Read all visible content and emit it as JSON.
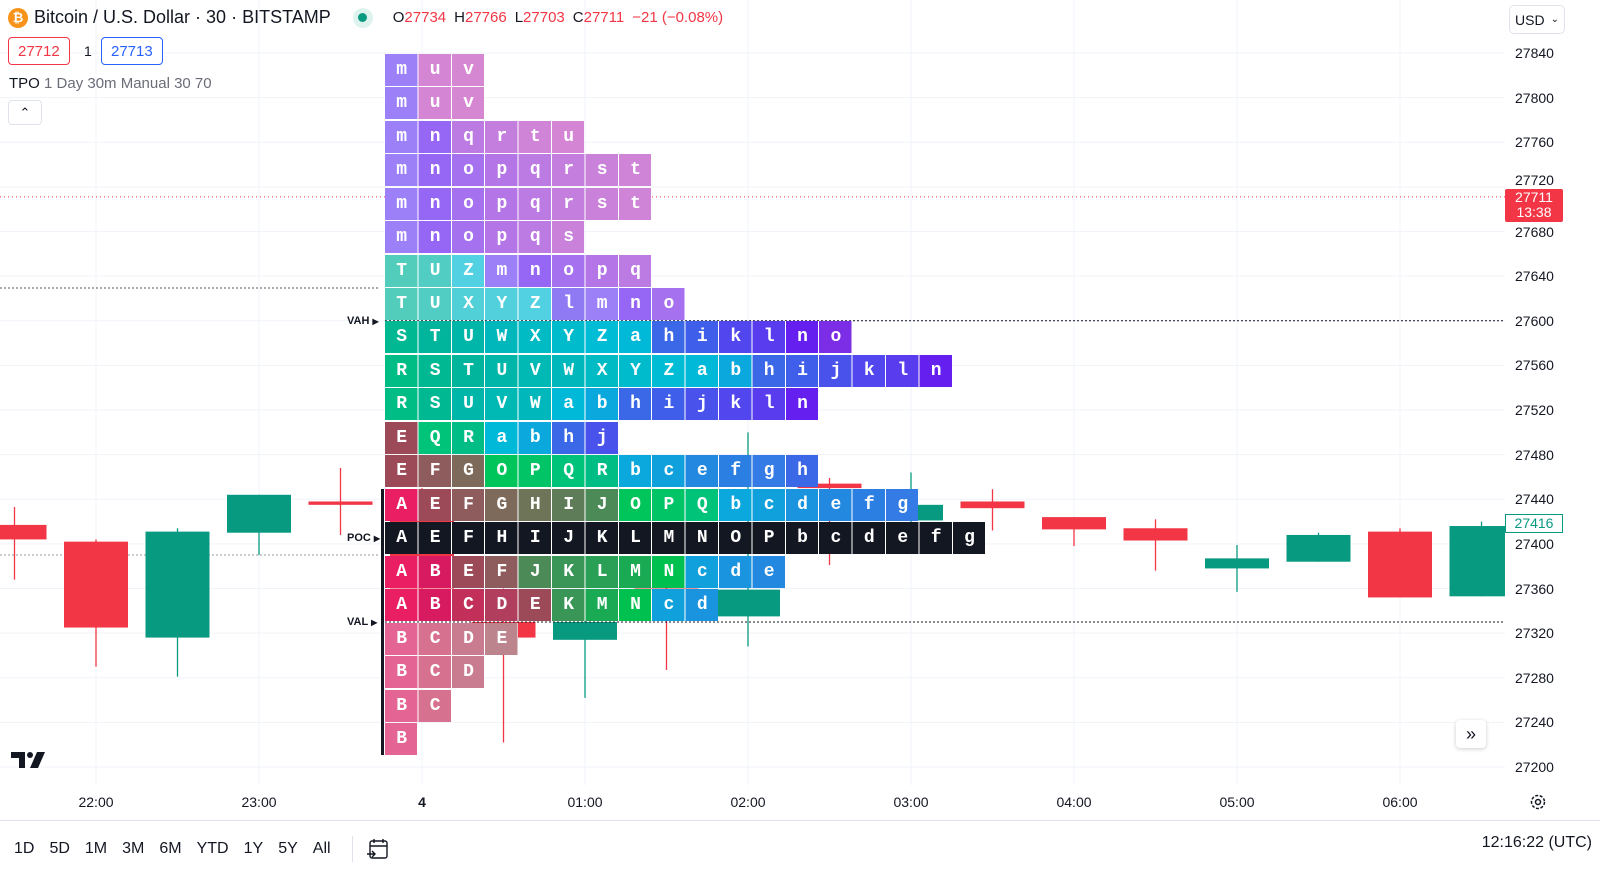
{
  "header": {
    "symbol_icon": "bitcoin-icon",
    "title": "Bitcoin / U.S. Dollar · 30 · BITSTAMP",
    "status": "market-open-dot",
    "ohlc": {
      "o_label": "O",
      "o": "27734",
      "h_label": "H",
      "h": "27766",
      "l_label": "L",
      "l": "27703",
      "c_label": "C",
      "c": "27711",
      "change": "−21 (−0.08%)"
    }
  },
  "bid": "27712",
  "spread": "1",
  "ask": "27713",
  "indicator": {
    "name": "TPO",
    "params": "1 Day 30m Manual 30 70"
  },
  "currency": "USD",
  "colors": {
    "up": "#089981",
    "down": "#f23645",
    "poc_bg": "#131722"
  },
  "chart_data": {
    "type": "candlestick+tpo",
    "price_axis": {
      "ticks": [
        "27840",
        "27800",
        "27760",
        "27720",
        "27680",
        "27640",
        "27600",
        "27560",
        "27520",
        "27480",
        "27440",
        "27400",
        "27360",
        "27320",
        "27280",
        "27240",
        "27200"
      ],
      "range": [
        27200,
        27840
      ]
    },
    "time_axis": {
      "ticks": [
        "22:00",
        "23:00",
        "4",
        "01:00",
        "02:00",
        "03:00",
        "04:00",
        "05:00",
        "06:00"
      ]
    },
    "current_price": {
      "value": "27711",
      "countdown": "13:38"
    },
    "last_label": "27416",
    "candles": [
      {
        "t": "21:30",
        "o": 27417,
        "h": 27433,
        "l": 27368,
        "c": 27404
      },
      {
        "t": "22:00",
        "o": 27402,
        "h": 27404,
        "l": 27290,
        "c": 27325
      },
      {
        "t": "22:30",
        "o": 27316,
        "h": 27414,
        "l": 27281,
        "c": 27411
      },
      {
        "t": "23:00",
        "o": 27410,
        "h": 27444,
        "l": 27390,
        "c": 27444
      },
      {
        "t": "23:30",
        "o": 27438,
        "h": 27468,
        "l": 27408,
        "c": 27435
      },
      {
        "t": "00:00",
        "o": 27435,
        "h": 27450,
        "l": 27340,
        "c": 27360
      },
      {
        "t": "00:30",
        "o": 27330,
        "h": 27360,
        "l": 27222,
        "c": 27316
      },
      {
        "t": "01:00",
        "o": 27314,
        "h": 27345,
        "l": 27262,
        "c": 27330
      },
      {
        "t": "01:30",
        "o": 27360,
        "h": 27380,
        "l": 27287,
        "c": 27345
      },
      {
        "t": "02:00",
        "o": 27335,
        "h": 27500,
        "l": 27308,
        "c": 27359
      },
      {
        "t": "02:30",
        "o": 27454,
        "h": 27459,
        "l": 27381,
        "c": 27450
      },
      {
        "t": "03:00",
        "o": 27421,
        "h": 27464,
        "l": 27415,
        "c": 27435
      },
      {
        "t": "03:30",
        "o": 27438,
        "h": 27449,
        "l": 27412,
        "c": 27432
      },
      {
        "t": "04:00",
        "o": 27424,
        "h": 27424,
        "l": 27398,
        "c": 27413
      },
      {
        "t": "04:30",
        "o": 27414,
        "h": 27422,
        "l": 27376,
        "c": 27403
      },
      {
        "t": "05:00",
        "o": 27378,
        "h": 27399,
        "l": 27357,
        "c": 27387
      },
      {
        "t": "05:30",
        "o": 27384,
        "h": 27410,
        "l": 27384,
        "c": 27408
      },
      {
        "t": "06:00",
        "o": 27411,
        "h": 27414,
        "l": 27352,
        "c": 27352
      },
      {
        "t": "06:30",
        "o": 27353,
        "h": 27420,
        "l": 27353,
        "c": 27416
      }
    ],
    "tpo": {
      "top_price": 27825,
      "row_step": 30,
      "levels": {
        "vah": {
          "label": "VAH",
          "price": 27600
        },
        "poc": {
          "label": "POC",
          "row": 14
        },
        "val": {
          "label": "VAL",
          "price": 27330
        }
      },
      "value_area_rows": [
        8,
        16
      ],
      "rows": [
        "muv",
        "muv",
        "mnqrtu",
        "mnopqrst",
        "mnopqrst",
        "mnopqs",
        "TUZmnopq",
        "TUXYZlmno",
        "STUWXYZahiklno",
        "RSTUVWXYZabhijkln",
        "RSUVWabhijkln",
        "EQRabhj",
        "EFGOPQRbcefgh",
        "AEFGHIJOPQbcdefg",
        "AEFHIJKLMNOPbcdefg",
        "ABEFJKLMNcde",
        "ABCDEKMNcd",
        "BCDE",
        "BCD",
        "BC",
        "B"
      ],
      "letter_colors": {
        "A": "#e91e63",
        "B": "#d81b60",
        "C": "#c2305a",
        "D": "#b03e5c",
        "E": "#9c4a58",
        "F": "#8e5c5c",
        "G": "#7e6a5a",
        "H": "#6e7458",
        "I": "#5f7c58",
        "J": "#4c8a58",
        "K": "#3a9656",
        "L": "#2aa056",
        "M": "#1aaa54",
        "N": "#00c04f",
        "O": "#00c55a",
        "P": "#00c465",
        "Q": "#00c37a",
        "R": "#00bd86",
        "S": "#00b892",
        "T": "#00b59c",
        "U": "#00b6a8",
        "V": "#00b8b4",
        "W": "#00b8bc",
        "X": "#00bac4",
        "Y": "#00bbcc",
        "Z": "#00bcd4",
        "a": "#00b8d8",
        "b": "#0aa8dc",
        "c": "#10a0dc",
        "d": "#1a94de",
        "e": "#2388e0",
        "f": "#2c7fe2",
        "g": "#347be6",
        "h": "#3a68e6",
        "i": "#3f5fea",
        "j": "#4a52ec",
        "k": "#5246ee",
        "l": "#5a3cef",
        "m": "#6e44f5",
        "n": "#6520f0",
        "o": "#7b2ee6",
        "p": "#9036dc",
        "q": "#9c3cd6",
        "r": "#a842ce",
        "s": "#b046c8",
        "t": "#b84ac4",
        "u": "#c04cbe",
        "v": "#c24fbc"
      }
    }
  },
  "bottom": {
    "ranges": [
      "1D",
      "5D",
      "1M",
      "3M",
      "6M",
      "YTD",
      "1Y",
      "5Y",
      "All"
    ],
    "clock": "12:16:22 (UTC)"
  }
}
